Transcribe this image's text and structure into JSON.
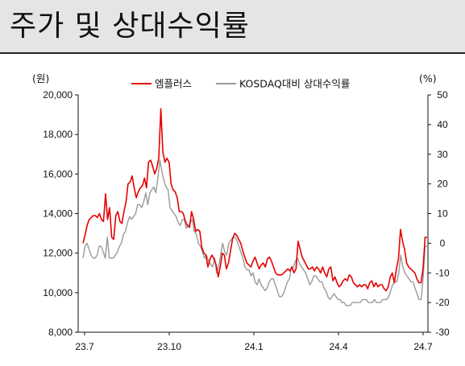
{
  "header": {
    "title": "주가 및 상대수익률"
  },
  "chart_data": {
    "type": "line",
    "title": "",
    "left_unit": "(원)",
    "right_unit": "(%)",
    "y_left": {
      "min": 8000,
      "max": 20000,
      "ticks": [
        "20,000",
        "18,000",
        "16,000",
        "14,000",
        "12,000",
        "10,000",
        "8,000"
      ]
    },
    "y_right": {
      "min": -30,
      "max": 50,
      "ticks": [
        "50",
        "40",
        "30",
        "20",
        "10",
        "0",
        "-10",
        "-20",
        "-30"
      ]
    },
    "x_ticks": [
      "23.7",
      "23.10",
      "24.1",
      "24.4",
      "24.7"
    ],
    "legend_position": "top",
    "series": [
      {
        "name": "엠플러스",
        "axis": "left",
        "color": "#e60000",
        "values": [
          12500,
          12900,
          13400,
          13700,
          13800,
          13900,
          13900,
          13800,
          14000,
          13700,
          13600,
          15000,
          13700,
          14300,
          12800,
          12700,
          13900,
          14100,
          13600,
          13500,
          14100,
          14600,
          15500,
          15600,
          15900,
          15300,
          14800,
          15100,
          15300,
          15400,
          15800,
          15300,
          16600,
          16700,
          16400,
          16000,
          16300,
          16800,
          19300,
          17100,
          16600,
          16800,
          16600,
          15500,
          15200,
          15100,
          14800,
          14100,
          14100,
          14000,
          13600,
          13400,
          13300,
          14100,
          13700,
          13100,
          13200,
          13100,
          12300,
          12000,
          11900,
          11300,
          11700,
          11900,
          11700,
          11400,
          10800,
          11300,
          12000,
          11900,
          11200,
          11500,
          12100,
          12700,
          13000,
          12900,
          12700,
          12500,
          12100,
          11800,
          11500,
          11400,
          11300,
          11600,
          11800,
          11500,
          11200,
          11400,
          11500,
          11300,
          11700,
          11800,
          11600,
          11300,
          11000,
          10900,
          10900,
          10900,
          11000,
          11100,
          11200,
          11100,
          11300,
          11000,
          11200,
          12600,
          12200,
          11800,
          11600,
          11400,
          11200,
          11200,
          11300,
          11100,
          11300,
          11200,
          11000,
          11300,
          11000,
          10800,
          11200,
          11300,
          10600,
          10800,
          10500,
          10300,
          10400,
          10600,
          10700,
          10600,
          10900,
          10800,
          10500,
          10400,
          10300,
          10400,
          10300,
          10400,
          10400,
          10200,
          10500,
          10600,
          10300,
          10500,
          10300,
          10400,
          10400,
          10200,
          10100,
          10300,
          10800,
          11000,
          10500,
          11200,
          11700,
          13200,
          12600,
          12200,
          11500,
          11300,
          11200,
          11100,
          11000,
          10700,
          10500,
          10500,
          11200,
          12800,
          12800
        ]
      },
      {
        "name": "KOSDAQ대비 상대수익률",
        "axis": "right",
        "color": "#9a9a9a",
        "values": [
          -5,
          -1,
          0,
          -2,
          -4,
          -5,
          -5,
          -4,
          -1,
          -1,
          -3,
          -5,
          2,
          -5,
          -5,
          -5,
          -4,
          -3,
          -1,
          0,
          3,
          4,
          7,
          9,
          8,
          9,
          10,
          13,
          13,
          12,
          14,
          17,
          13,
          17,
          18,
          19,
          17,
          22,
          28,
          24,
          21,
          19,
          18,
          12,
          11,
          10,
          9,
          7,
          6,
          8,
          8,
          5,
          6,
          7,
          8,
          4,
          3,
          0,
          -1,
          -3,
          -5,
          -4,
          -6,
          -7,
          -8,
          -5,
          -10,
          -8,
          -4,
          0,
          -3,
          -4,
          0,
          1,
          2,
          2,
          1,
          -1,
          -3,
          -5,
          -8,
          -9,
          -9,
          -11,
          -10,
          -13,
          -14,
          -12,
          -14,
          -15,
          -16,
          -15,
          -13,
          -12,
          -12,
          -14,
          -16,
          -18,
          -18,
          -17,
          -15,
          -13,
          -12,
          -8,
          -8,
          -6,
          -5,
          -7,
          -8,
          -9,
          -10,
          -12,
          -14,
          -13,
          -11,
          -11,
          -12,
          -13,
          -13,
          -15,
          -16,
          -18,
          -19,
          -18,
          -17,
          -18,
          -19,
          -19,
          -20,
          -20,
          -21,
          -21,
          -21,
          -20,
          -20,
          -20,
          -20,
          -20,
          -19,
          -19,
          -19,
          -20,
          -20,
          -20,
          -19,
          -20,
          -20,
          -20,
          -19,
          -19,
          -19,
          -18,
          -16,
          -14,
          -13,
          -13,
          -10,
          -4,
          -8,
          -10,
          -11,
          -12,
          -13,
          -13,
          -15,
          -17,
          -19,
          -19,
          -12,
          -1,
          -1
        ]
      }
    ]
  }
}
